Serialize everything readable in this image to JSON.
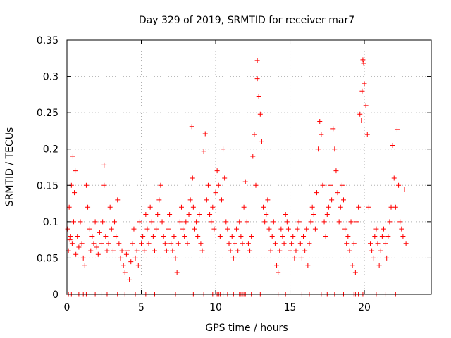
{
  "chart_data": {
    "type": "scatter",
    "title": "Day 329 of 2019, SRMTID for receiver mar7",
    "xlabel": "GPS time / hours",
    "ylabel": "SRMTID / TECUs",
    "xlim": [
      0,
      24.5
    ],
    "ylim": [
      0,
      0.35
    ],
    "xticks": [
      0,
      5,
      10,
      15,
      20
    ],
    "xtick_labels": [
      "0",
      "5",
      "10",
      "15",
      "20"
    ],
    "yticks": [
      0,
      0.05,
      0.1,
      0.15,
      0.2,
      0.25,
      0.3,
      0.35
    ],
    "ytick_labels": [
      "0",
      "0.05",
      "0.1",
      "0.15",
      "0.2",
      "0.25",
      "0.3",
      "0.35"
    ],
    "grid": true,
    "marker": "+",
    "series": [
      {
        "name": "SRMTID",
        "color": "#ff0000",
        "x": [
          0.05,
          0.1,
          0.15,
          0.2,
          0.25,
          0.3,
          0.35,
          0.4,
          0.45,
          0.5,
          0.55,
          0.6,
          0.7,
          0.8,
          0.9,
          1.0,
          1.1,
          1.2,
          1.3,
          1.4,
          1.5,
          1.6,
          1.7,
          1.8,
          1.9,
          2.0,
          2.1,
          2.2,
          2.3,
          2.4,
          2.5,
          2.5,
          2.6,
          2.7,
          2.8,
          2.9,
          3.0,
          3.1,
          3.2,
          3.3,
          3.4,
          3.5,
          3.6,
          3.7,
          3.8,
          3.9,
          4.0,
          4.1,
          4.2,
          4.3,
          4.4,
          4.5,
          4.6,
          4.7,
          4.8,
          4.9,
          5.0,
          5.1,
          5.2,
          5.3,
          5.4,
          5.5,
          5.6,
          5.7,
          5.8,
          5.9,
          6.0,
          6.1,
          6.2,
          6.3,
          6.4,
          6.5,
          6.6,
          6.7,
          6.8,
          6.9,
          7.0,
          7.1,
          7.2,
          7.3,
          7.4,
          7.5,
          7.6,
          7.7,
          7.8,
          7.9,
          8.0,
          8.1,
          8.2,
          8.3,
          8.4,
          8.45,
          8.5,
          8.6,
          8.7,
          8.8,
          8.9,
          9.0,
          9.1,
          9.2,
          9.3,
          9.4,
          9.5,
          9.6,
          9.7,
          9.8,
          9.9,
          10.0,
          10.1,
          10.2,
          10.3,
          10.4,
          10.5,
          10.6,
          10.7,
          10.8,
          10.9,
          11.0,
          11.1,
          11.2,
          11.3,
          11.4,
          11.5,
          11.6,
          11.7,
          11.8,
          11.9,
          12.0,
          12.1,
          12.2,
          12.3,
          12.4,
          12.5,
          12.6,
          12.7,
          12.8,
          12.8,
          12.9,
          13.0,
          13.1,
          13.2,
          13.3,
          13.4,
          13.5,
          13.6,
          13.7,
          13.8,
          13.9,
          14.0,
          14.1,
          14.2,
          14.3,
          14.4,
          14.5,
          14.6,
          14.7,
          14.8,
          14.9,
          15.0,
          15.1,
          15.2,
          15.3,
          15.4,
          15.5,
          15.6,
          15.7,
          15.8,
          15.9,
          16.0,
          16.1,
          16.2,
          16.3,
          16.4,
          16.5,
          16.6,
          16.7,
          16.8,
          16.9,
          17.0,
          17.1,
          17.2,
          17.3,
          17.4,
          17.5,
          17.6,
          17.7,
          17.8,
          17.9,
          18.0,
          18.1,
          18.2,
          18.3,
          18.4,
          18.5,
          18.6,
          18.7,
          18.8,
          18.9,
          19.0,
          19.1,
          19.2,
          19.3,
          19.4,
          19.5,
          19.6,
          19.7,
          19.8,
          19.85,
          19.9,
          19.95,
          20.0,
          20.1,
          20.2,
          20.3,
          20.4,
          20.5,
          20.6,
          20.7,
          20.8,
          20.9,
          21.0,
          21.1,
          21.2,
          21.3,
          21.4,
          21.5,
          21.6,
          21.7,
          21.8,
          21.9,
          22.0,
          22.1,
          22.2,
          22.3,
          22.4,
          22.5,
          22.6,
          22.7,
          22.8
        ],
        "y": [
          0.09,
          0.06,
          0.12,
          0.075,
          0.08,
          0.15,
          0.07,
          0.19,
          0.1,
          0.14,
          0.17,
          0.055,
          0.08,
          0.065,
          0.1,
          0.07,
          0.05,
          0.04,
          0.15,
          0.12,
          0.09,
          0.06,
          0.08,
          0.07,
          0.1,
          0.065,
          0.055,
          0.085,
          0.07,
          0.1,
          0.178,
          0.15,
          0.08,
          0.06,
          0.07,
          0.12,
          0.09,
          0.06,
          0.1,
          0.08,
          0.13,
          0.07,
          0.05,
          0.06,
          0.04,
          0.03,
          0.055,
          0.06,
          0.02,
          0.045,
          0.07,
          0.09,
          0.05,
          0.06,
          0.04,
          0.1,
          0.07,
          0.08,
          0.06,
          0.11,
          0.09,
          0.07,
          0.12,
          0.1,
          0.08,
          0.06,
          0.09,
          0.11,
          0.13,
          0.15,
          0.1,
          0.08,
          0.07,
          0.06,
          0.09,
          0.11,
          0.07,
          0.06,
          0.08,
          0.05,
          0.03,
          0.07,
          0.1,
          0.12,
          0.09,
          0.08,
          0.1,
          0.07,
          0.11,
          0.13,
          0.231,
          0.16,
          0.12,
          0.09,
          0.1,
          0.08,
          0.11,
          0.07,
          0.06,
          0.197,
          0.221,
          0.13,
          0.15,
          0.11,
          0.1,
          0.12,
          0.09,
          0.14,
          0.17,
          0.15,
          0.08,
          0.13,
          0.2,
          0.16,
          0.1,
          0.09,
          0.07,
          0.06,
          0.08,
          0.05,
          0.07,
          0.09,
          0.06,
          0.1,
          0.08,
          0.07,
          0.12,
          0.155,
          0.1,
          0.07,
          0.06,
          0.08,
          0.19,
          0.22,
          0.15,
          0.322,
          0.297,
          0.272,
          0.248,
          0.21,
          0.12,
          0.1,
          0.11,
          0.13,
          0.09,
          0.06,
          0.08,
          0.1,
          0.07,
          0.04,
          0.03,
          0.06,
          0.09,
          0.08,
          0.07,
          0.11,
          0.1,
          0.09,
          0.06,
          0.07,
          0.08,
          0.05,
          0.06,
          0.09,
          0.1,
          0.07,
          0.05,
          0.08,
          0.06,
          0.09,
          0.04,
          0.07,
          0.1,
          0.12,
          0.11,
          0.09,
          0.14,
          0.2,
          0.238,
          0.22,
          0.15,
          0.1,
          0.08,
          0.11,
          0.12,
          0.15,
          0.13,
          0.228,
          0.2,
          0.17,
          0.14,
          0.1,
          0.12,
          0.15,
          0.13,
          0.09,
          0.07,
          0.08,
          0.06,
          0.1,
          0.04,
          0.07,
          0.03,
          0.1,
          0.12,
          0.248,
          0.24,
          0.28,
          0.323,
          0.318,
          0.29,
          0.26,
          0.22,
          0.12,
          0.07,
          0.06,
          0.05,
          0.08,
          0.09,
          0.07,
          0.04,
          0.06,
          0.08,
          0.09,
          0.07,
          0.05,
          0.08,
          0.1,
          0.12,
          0.205,
          0.16,
          0.12,
          0.227,
          0.15,
          0.1,
          0.09,
          0.08,
          0.145,
          0.07
        ]
      }
    ],
    "zero_flag_x": [
      0.1,
      0.3,
      0.8,
      1.1,
      1.3,
      1.9,
      2.3,
      2.7,
      3.4,
      3.9,
      4.6,
      5.3,
      5.9,
      7.3,
      8.5,
      9.2,
      9.8,
      10.1,
      10.2,
      10.3,
      10.5,
      10.8,
      11.2,
      11.6,
      11.7,
      11.8,
      11.9,
      12.0,
      12.4,
      13.0,
      14.2,
      14.7,
      15.8,
      16.3,
      17.1,
      17.5,
      17.7,
      18.0,
      18.6,
      19.3,
      19.4,
      19.5,
      19.6,
      19.9,
      20.8,
      21.4,
      22.1
    ]
  }
}
